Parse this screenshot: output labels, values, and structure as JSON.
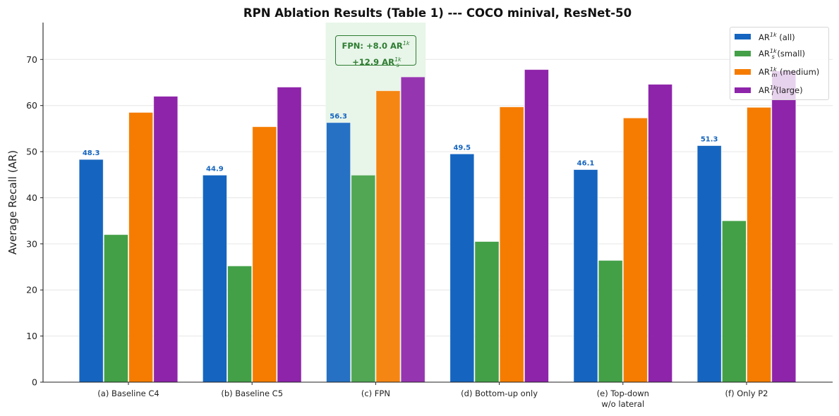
{
  "chart_data": {
    "type": "bar",
    "title": "RPN Ablation Results (Table 1) --- COCO minival, ResNet-50",
    "xlabel": "",
    "ylabel": "Average Recall (AR)",
    "ylim": [
      0,
      78
    ],
    "yticks": [
      0,
      10,
      20,
      30,
      40,
      50,
      60,
      70
    ],
    "grid": "horizontal",
    "legend_position": "top-right",
    "categories": [
      "(a) Baseline C4",
      "(b) Baseline C5",
      "(c) FPN",
      "(d) Bottom-up only",
      "(e) Top-down\nw/o lateral",
      "(f) Only P2"
    ],
    "series": [
      {
        "name": "AR^1k (all)",
        "label_base": "AR",
        "sup": "1k",
        "sub": "",
        "suffix": " (all)",
        "color": "#1565c0",
        "values": [
          48.3,
          44.9,
          56.3,
          49.5,
          46.1,
          51.3
        ],
        "show_labels": true
      },
      {
        "name": "AR_s^1k (small)",
        "label_base": "AR",
        "sup": "1k",
        "sub": "s",
        "suffix": " (small)",
        "color": "#43a047",
        "values": [
          32.0,
          25.2,
          44.9,
          30.5,
          26.4,
          35.0
        ],
        "show_labels": false
      },
      {
        "name": "AR_m^1k (medium)",
        "label_base": "AR",
        "sup": "1k",
        "sub": "m",
        "suffix": " (medium)",
        "color": "#f57c00",
        "values": [
          58.5,
          55.4,
          63.2,
          59.7,
          57.3,
          59.6
        ],
        "show_labels": false
      },
      {
        "name": "AR_l^1k (large)",
        "label_base": "AR",
        "sup": "1k",
        "sub": "l",
        "suffix": " (large)",
        "color": "#8e24aa",
        "values": [
          62.0,
          64.0,
          66.2,
          67.8,
          64.6,
          67.5
        ],
        "show_labels": false
      }
    ],
    "highlight": {
      "category_index": 2,
      "color": "#e8f5e9",
      "annotation_line1_prefix": "FPN: +8.0 AR",
      "annotation_line1_sup": "1k",
      "annotation_line2_prefix": "+12.9 AR",
      "annotation_line2_sup": "1k",
      "annotation_line2_sub": "s",
      "annotation_color": "#2e7d32"
    },
    "value_label_color": "#1565c0"
  }
}
